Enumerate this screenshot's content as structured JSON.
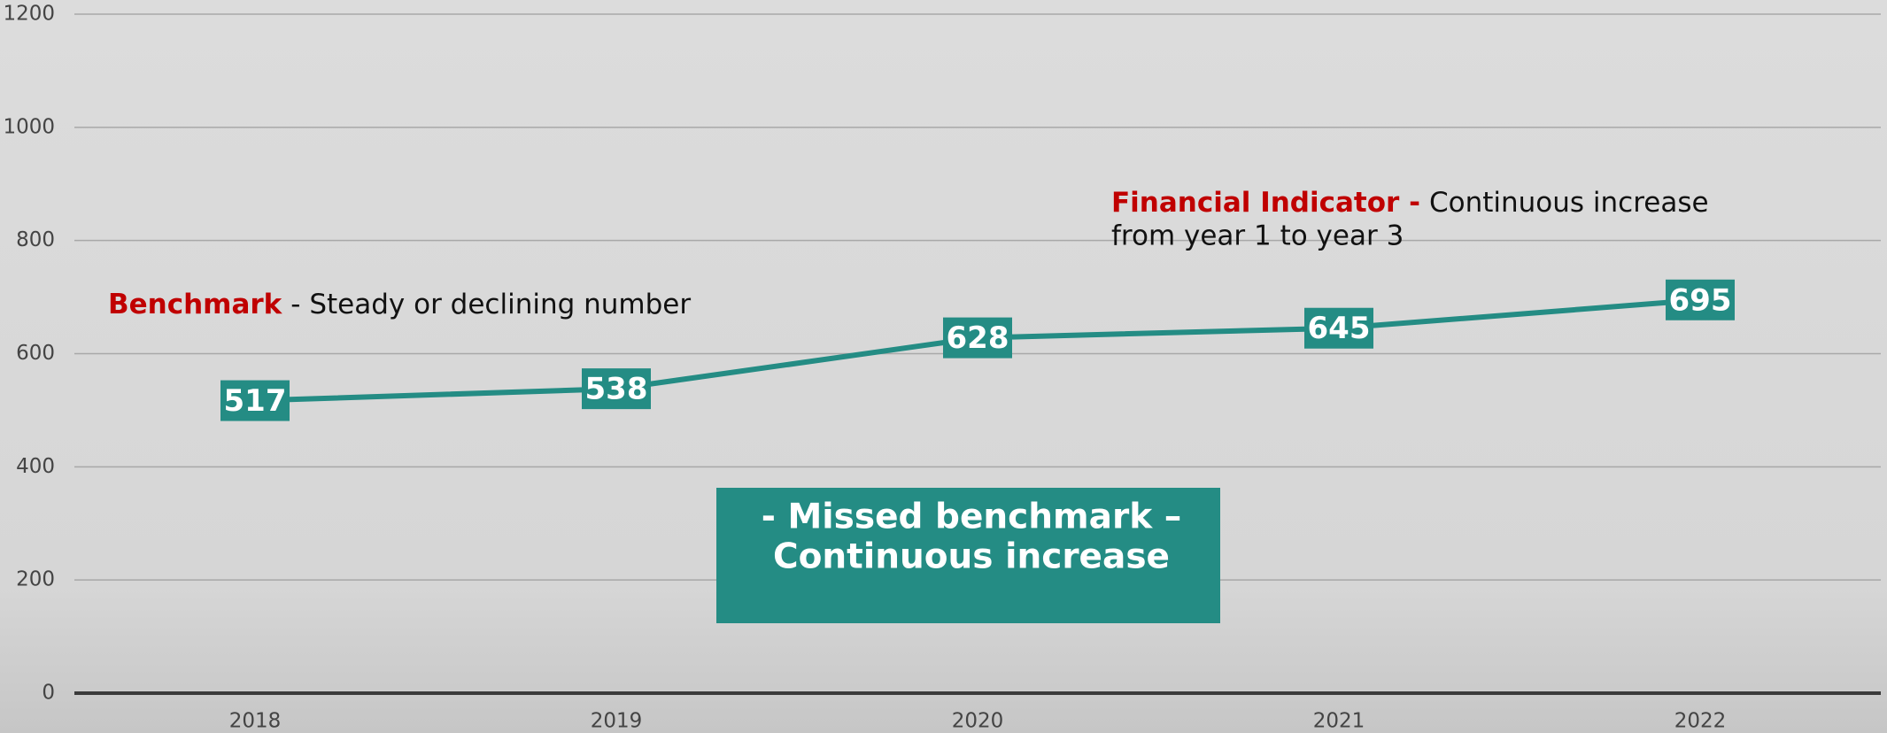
{
  "chart_data": {
    "type": "line",
    "categories": [
      "2018",
      "2019",
      "2020",
      "2021",
      "2022"
    ],
    "series": [
      {
        "name": "Financial Indicator",
        "color": "#248c84",
        "values": [
          517,
          538,
          628,
          645,
          695
        ]
      }
    ],
    "ylim": [
      0,
      1200
    ],
    "yticks": [
      0,
      200,
      400,
      600,
      800,
      1000,
      1200
    ],
    "grid": true,
    "annotations": {
      "benchmark": {
        "label": "Benchmark",
        "text": "- Steady or declining number"
      },
      "indicator": {
        "label": "Financial Indicator -",
        "text": [
          "Continuous increase",
          "from year 1 to year 3"
        ]
      },
      "box": [
        "- Missed benchmark –",
        "Continuous increase"
      ]
    }
  }
}
